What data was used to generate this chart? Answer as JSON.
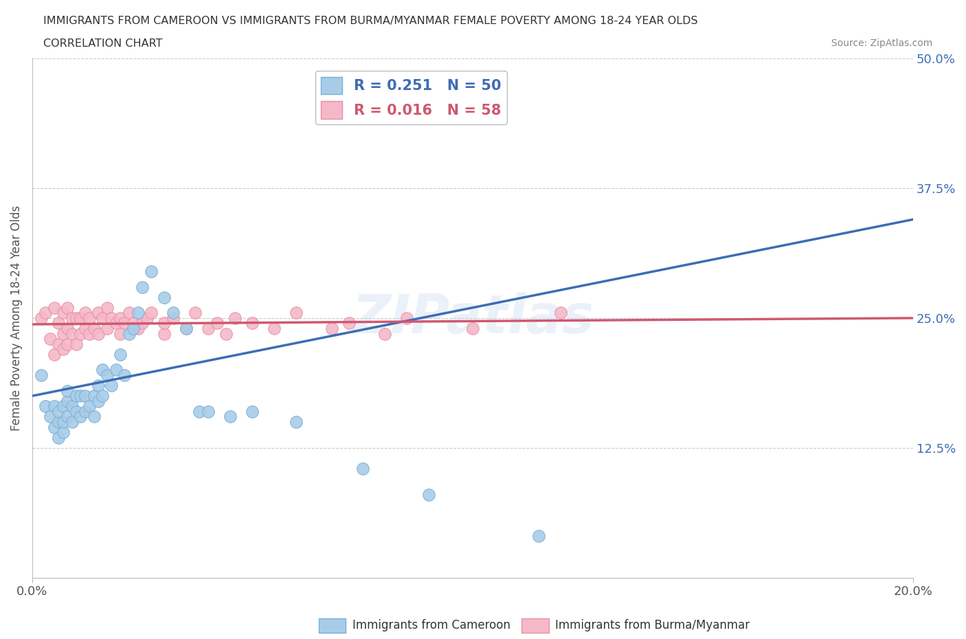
{
  "title_line1": "IMMIGRANTS FROM CAMEROON VS IMMIGRANTS FROM BURMA/MYANMAR FEMALE POVERTY AMONG 18-24 YEAR OLDS",
  "title_line2": "CORRELATION CHART",
  "source_text": "Source: ZipAtlas.com",
  "ylabel": "Female Poverty Among 18-24 Year Olds",
  "xlim": [
    0.0,
    0.2
  ],
  "ylim": [
    0.0,
    0.5
  ],
  "ytick_labels": [
    "12.5%",
    "25.0%",
    "37.5%",
    "50.0%"
  ],
  "ytick_values": [
    0.125,
    0.25,
    0.375,
    0.5
  ],
  "color_cameroon": "#a8cce8",
  "color_burma": "#f5b8c8",
  "color_cameroon_edge": "#7aafd4",
  "color_burma_edge": "#e890a8",
  "color_trendline_cameroon": "#3d6db5",
  "color_trendline_burma": "#d05870",
  "R_cameroon": 0.251,
  "N_cameroon": 50,
  "R_burma": 0.016,
  "N_burma": 58,
  "cameroon_x": [
    0.002,
    0.003,
    0.004,
    0.005,
    0.005,
    0.006,
    0.006,
    0.006,
    0.007,
    0.007,
    0.007,
    0.008,
    0.008,
    0.008,
    0.009,
    0.009,
    0.01,
    0.01,
    0.011,
    0.011,
    0.012,
    0.012,
    0.013,
    0.014,
    0.014,
    0.015,
    0.015,
    0.016,
    0.016,
    0.017,
    0.018,
    0.019,
    0.02,
    0.021,
    0.022,
    0.023,
    0.024,
    0.025,
    0.027,
    0.03,
    0.032,
    0.035,
    0.038,
    0.04,
    0.045,
    0.05,
    0.06,
    0.075,
    0.09,
    0.115
  ],
  "cameroon_y": [
    0.195,
    0.165,
    0.155,
    0.145,
    0.165,
    0.135,
    0.15,
    0.16,
    0.14,
    0.15,
    0.165,
    0.155,
    0.17,
    0.18,
    0.15,
    0.165,
    0.16,
    0.175,
    0.155,
    0.175,
    0.16,
    0.175,
    0.165,
    0.155,
    0.175,
    0.17,
    0.185,
    0.175,
    0.2,
    0.195,
    0.185,
    0.2,
    0.215,
    0.195,
    0.235,
    0.24,
    0.255,
    0.28,
    0.295,
    0.27,
    0.255,
    0.24,
    0.16,
    0.16,
    0.155,
    0.16,
    0.15,
    0.105,
    0.08,
    0.04
  ],
  "burma_x": [
    0.002,
    0.003,
    0.004,
    0.005,
    0.005,
    0.006,
    0.006,
    0.007,
    0.007,
    0.007,
    0.008,
    0.008,
    0.008,
    0.009,
    0.009,
    0.01,
    0.01,
    0.011,
    0.011,
    0.012,
    0.012,
    0.013,
    0.013,
    0.014,
    0.015,
    0.015,
    0.016,
    0.017,
    0.017,
    0.018,
    0.019,
    0.02,
    0.02,
    0.021,
    0.022,
    0.023,
    0.024,
    0.025,
    0.026,
    0.027,
    0.03,
    0.03,
    0.032,
    0.035,
    0.037,
    0.04,
    0.042,
    0.044,
    0.046,
    0.05,
    0.055,
    0.06,
    0.068,
    0.072,
    0.08,
    0.085,
    0.1,
    0.12
  ],
  "burma_y": [
    0.25,
    0.255,
    0.23,
    0.215,
    0.26,
    0.225,
    0.245,
    0.22,
    0.235,
    0.255,
    0.225,
    0.24,
    0.26,
    0.235,
    0.25,
    0.225,
    0.25,
    0.235,
    0.25,
    0.24,
    0.255,
    0.235,
    0.25,
    0.24,
    0.235,
    0.255,
    0.25,
    0.24,
    0.26,
    0.25,
    0.245,
    0.235,
    0.25,
    0.245,
    0.255,
    0.245,
    0.24,
    0.245,
    0.25,
    0.255,
    0.235,
    0.245,
    0.25,
    0.24,
    0.255,
    0.24,
    0.245,
    0.235,
    0.25,
    0.245,
    0.24,
    0.255,
    0.24,
    0.245,
    0.235,
    0.25,
    0.24,
    0.255
  ],
  "background_color": "#ffffff",
  "grid_color": "#cccccc",
  "watermark_text": "ZIPatlas",
  "watermark_color": "#c8d8f0",
  "watermark_alpha": 0.35,
  "trendline_cameroon_y0": 0.175,
  "trendline_cameroon_y1": 0.345,
  "trendline_burma_y0": 0.244,
  "trendline_burma_y1": 0.25
}
